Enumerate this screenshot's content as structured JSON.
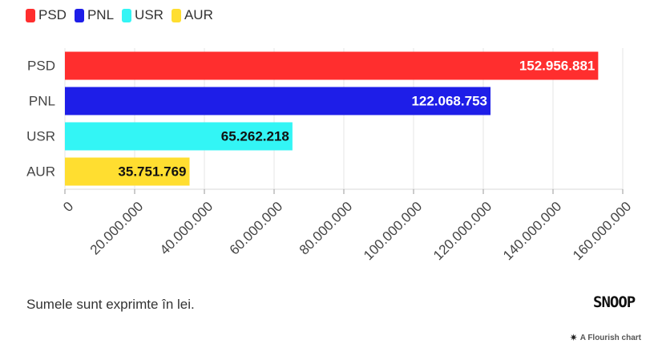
{
  "chart_data": {
    "type": "bar",
    "orientation": "horizontal",
    "categories": [
      "PSD",
      "PNL",
      "USR",
      "AUR"
    ],
    "values": [
      152956881,
      122068753,
      65262218,
      35751769
    ],
    "value_labels": [
      "152.956.881",
      "122.068.753",
      "65.262.218",
      "35.751.769"
    ],
    "colors": [
      "#ff2e2e",
      "#1e1ee8",
      "#33f5f5",
      "#ffde30"
    ],
    "label_colors": [
      "#ffffff",
      "#ffffff",
      "#111111",
      "#111111"
    ],
    "xlim": [
      0,
      160000000
    ],
    "xticks": [
      0,
      20000000,
      40000000,
      60000000,
      80000000,
      100000000,
      120000000,
      140000000,
      160000000
    ],
    "xtick_labels": [
      "0",
      "20.000.000",
      "40.000.000",
      "60.000.000",
      "80.000.000",
      "100.000.000",
      "120.000.000",
      "140.000.000",
      "160.000.000"
    ],
    "legend": [
      {
        "name": "PSD",
        "color": "#ff2e2e"
      },
      {
        "name": "PNL",
        "color": "#1e1ee8"
      },
      {
        "name": "USR",
        "color": "#33f5f5"
      },
      {
        "name": "AUR",
        "color": "#ffde30"
      }
    ],
    "legend_position": "top-left",
    "grid": true
  },
  "footer": {
    "note": "Sumele sunt exprimte în lei.",
    "brand": "SNOOP",
    "credit": "A Flourish chart",
    "credit_icon": "flourish-asterisk-icon"
  }
}
